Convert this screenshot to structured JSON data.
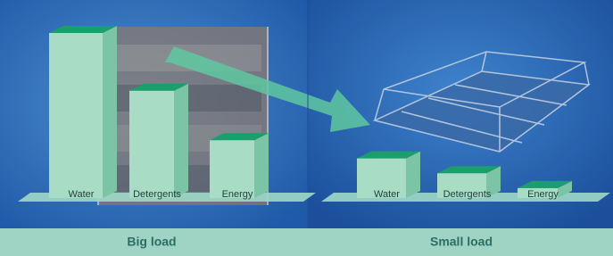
{
  "chart_data": [
    {
      "type": "bar",
      "title": "Big load",
      "categories": [
        "Water",
        "Detergents",
        "Energy"
      ],
      "values": [
        100,
        65,
        35
      ],
      "color": "#a9dcc4"
    },
    {
      "type": "bar",
      "title": "Small load",
      "categories": [
        "Water",
        "Detergents",
        "Energy"
      ],
      "values": [
        24,
        15,
        6
      ],
      "color": "#a9dcc4"
    }
  ]
}
